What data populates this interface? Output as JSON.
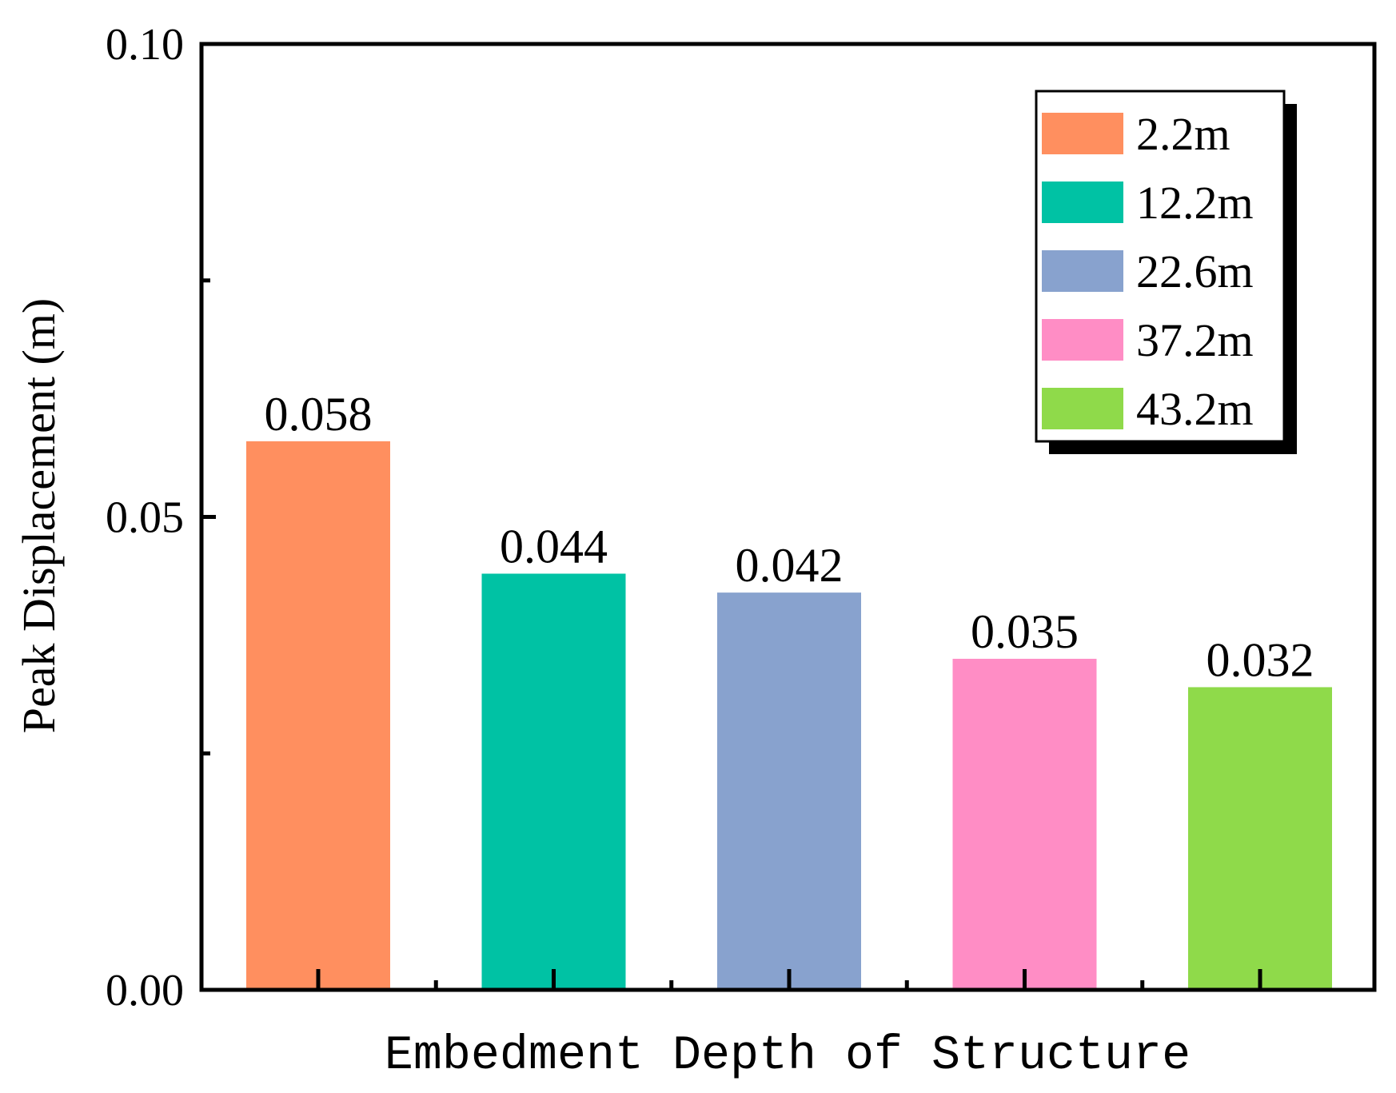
{
  "chart_data": {
    "type": "bar",
    "title": "",
    "xlabel": "Embedment Depth of Structure",
    "ylabel": "Peak Displacement (m)",
    "ylim": [
      0,
      0.1
    ],
    "yticks": [
      {
        "value": 0.0,
        "label": "0.00"
      },
      {
        "value": 0.05,
        "label": "0.05"
      },
      {
        "value": 0.1,
        "label": "0.10"
      }
    ],
    "y_minor_ticks": [
      0.025,
      0.075
    ],
    "grid": false,
    "legend_position": "top-right",
    "categories": [
      "2.2m",
      "12.2m",
      "22.6m",
      "37.2m",
      "43.2m"
    ],
    "values": [
      0.058,
      0.044,
      0.042,
      0.035,
      0.032
    ],
    "value_labels": [
      "0.058",
      "0.044",
      "0.042",
      "0.035",
      "0.032"
    ],
    "colors": [
      "#FF8F5F",
      "#00C2A4",
      "#88A2CE",
      "#FF8DC5",
      "#8FDA4A"
    ]
  }
}
